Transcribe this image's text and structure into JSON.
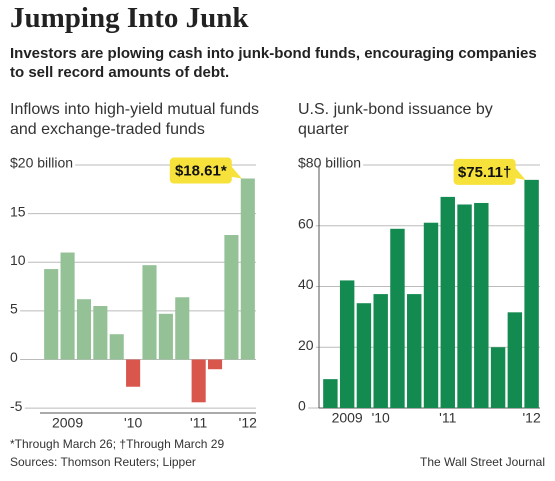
{
  "header": {
    "title": "Jumping Into Junk",
    "subtitle": "Investors are plowing cash into junk-bond funds, encouraging companies to sell record amounts of debt."
  },
  "chart_data": [
    {
      "type": "bar",
      "title": "Inflows into high-yield mutual funds and exchange-traded funds",
      "categories": [
        null,
        "2009",
        null,
        null,
        null,
        "'10",
        null,
        null,
        null,
        "'11",
        null,
        null,
        "'12"
      ],
      "values": [
        9.3,
        11.0,
        6.2,
        5.5,
        2.6,
        -2.8,
        9.7,
        4.7,
        6.4,
        -4.4,
        -1.0,
        12.8,
        18.61
      ],
      "value_labels": [
        null,
        null,
        null,
        null,
        null,
        null,
        null,
        null,
        null,
        null,
        null,
        null,
        "$18.61*"
      ],
      "color": "#94c196",
      "negative_color": "#d9564c",
      "ylim": [
        -5.5,
        20
      ],
      "yticks": [
        -5,
        0,
        5,
        10,
        15,
        {
          "value": 20,
          "label": "$20 billion"
        }
      ],
      "grid": true
    },
    {
      "type": "bar",
      "title": "U.S. junk-bond issuance by quarter",
      "categories": [
        null,
        "2009",
        null,
        "'10",
        null,
        null,
        null,
        "'11",
        null,
        null,
        null,
        null,
        "'12"
      ],
      "values": [
        9.5,
        42,
        34.5,
        37.5,
        59,
        37.5,
        61,
        69.5,
        67,
        67.5,
        20,
        31.5,
        75.11
      ],
      "value_labels": [
        null,
        null,
        null,
        null,
        null,
        null,
        null,
        null,
        null,
        null,
        null,
        null,
        "$75.11†"
      ],
      "color": "#138a50",
      "ylim": [
        0,
        80
      ],
      "yticks": [
        0,
        20,
        40,
        60,
        {
          "value": 80,
          "label": "$80 billion"
        }
      ],
      "grid": true
    }
  ],
  "footer": {
    "notes": "*Through March 26;  †Through March 29",
    "sources": "Sources: Thomson Reuters; Lipper",
    "credit": "The Wall Street Journal"
  }
}
